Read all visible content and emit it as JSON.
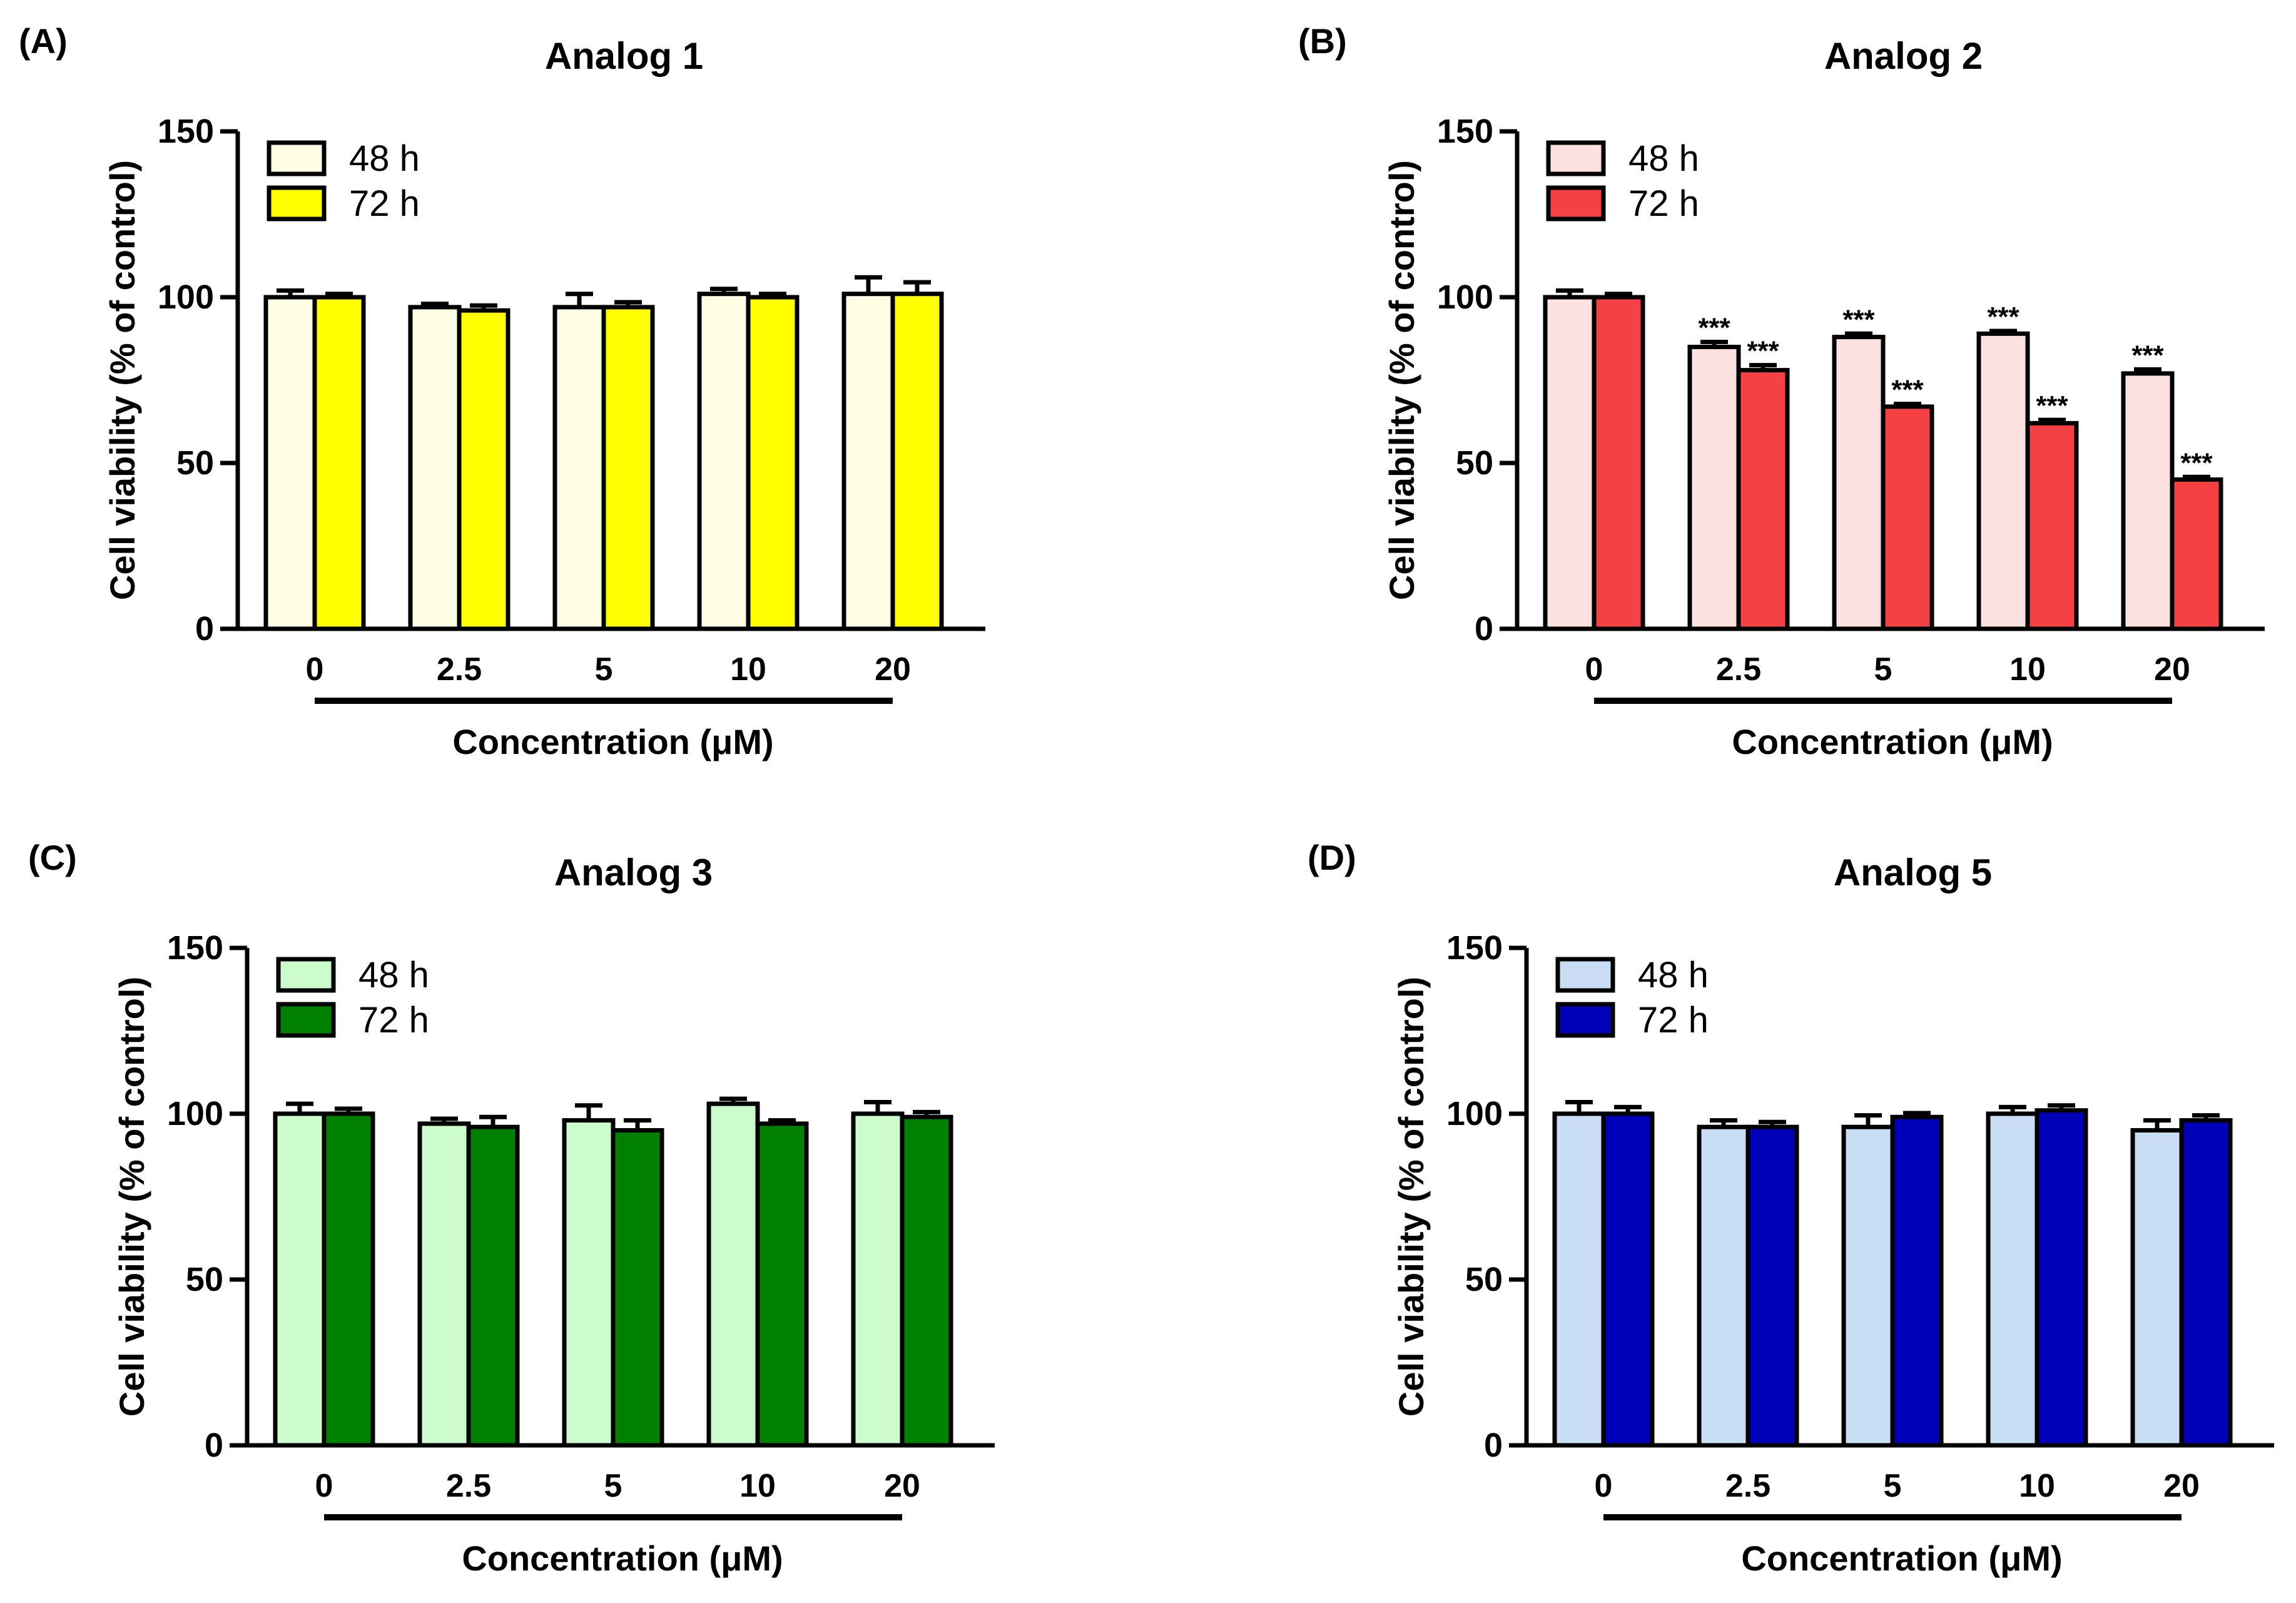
{
  "figure": {
    "x_axis_label": "Concentration (μM)",
    "y_axis_label": "Cell viability (% of control)"
  },
  "chart_data": [
    {
      "type": "bar",
      "panel": "(A)",
      "title": "Analog 1",
      "xlabel": "Concentration (μM)",
      "ylabel": "Cell viability (% of control)",
      "ylim": [
        0,
        150
      ],
      "yticks": [
        "0",
        "50",
        "100",
        "150"
      ],
      "categories": [
        "0",
        "2.5",
        "5",
        "10",
        "20"
      ],
      "legend_position": "top-left",
      "series": [
        {
          "name": "48 h",
          "color": "#FFFDE3",
          "values": [
            100,
            97,
            97,
            101,
            101
          ],
          "errors": [
            2,
            1,
            4,
            1.5,
            5
          ],
          "annotations": [
            "",
            "",
            "",
            "",
            ""
          ]
        },
        {
          "name": "72 h",
          "color": "#FFFF00",
          "values": [
            100,
            96,
            97,
            100,
            101
          ],
          "errors": [
            1,
            1.5,
            1.5,
            1,
            3.5
          ],
          "annotations": [
            "",
            "",
            "",
            "",
            ""
          ]
        }
      ]
    },
    {
      "type": "bar",
      "panel": "(B)",
      "title": "Analog 2",
      "xlabel": "Concentration (μM)",
      "ylabel": "Cell viability (% of control)",
      "ylim": [
        0,
        150
      ],
      "yticks": [
        "0",
        "50",
        "100",
        "150"
      ],
      "categories": [
        "0",
        "2.5",
        "5",
        "10",
        "20"
      ],
      "legend_position": "top-left",
      "series": [
        {
          "name": "48 h",
          "color": "#FDE0E0",
          "values": [
            100,
            85,
            88,
            89,
            77
          ],
          "errors": [
            2,
            1.5,
            1,
            0.8,
            1.2
          ],
          "annotations": [
            "",
            "***",
            "***",
            "***",
            "***"
          ]
        },
        {
          "name": "72 h",
          "color": "#F64144",
          "values": [
            100,
            78,
            67,
            62,
            45
          ],
          "errors": [
            1,
            1.5,
            0.8,
            1,
            0.8
          ],
          "annotations": [
            "",
            "***",
            "***",
            "***",
            "***"
          ]
        }
      ]
    },
    {
      "type": "bar",
      "panel": "(C)",
      "title": "Analog 3",
      "xlabel": "Concentration (μM)",
      "ylabel": "Cell viability (% of control)",
      "ylim": [
        0,
        150
      ],
      "yticks": [
        "0",
        "50",
        "100",
        "150"
      ],
      "categories": [
        "0",
        "2.5",
        "5",
        "10",
        "20"
      ],
      "legend_position": "top-left",
      "series": [
        {
          "name": "48 h",
          "color": "#CCFBCC",
          "values": [
            100,
            97,
            98,
            103,
            100
          ],
          "errors": [
            3,
            1.5,
            4.5,
            1.5,
            3.5
          ],
          "annotations": [
            "",
            "",
            "",
            "",
            ""
          ]
        },
        {
          "name": "72 h",
          "color": "#008000",
          "values": [
            100,
            96,
            95,
            97,
            99
          ],
          "errors": [
            1.5,
            3,
            3,
            1,
            1.5
          ],
          "annotations": [
            "",
            "",
            "",
            "",
            ""
          ]
        }
      ]
    },
    {
      "type": "bar",
      "panel": "(D)",
      "title": "Analog 5",
      "xlabel": "Concentration (μM)",
      "ylabel": "Cell viability (% of control)",
      "ylim": [
        0,
        150
      ],
      "yticks": [
        "0",
        "50",
        "100",
        "150"
      ],
      "categories": [
        "0",
        "2.5",
        "5",
        "10",
        "20"
      ],
      "legend_position": "top-left",
      "series": [
        {
          "name": "48 h",
          "color": "#C9DDF5",
          "values": [
            100,
            96,
            96,
            100,
            95
          ],
          "errors": [
            3.5,
            2,
            3.5,
            2,
            3
          ],
          "annotations": [
            "",
            "",
            "",
            "",
            ""
          ]
        },
        {
          "name": "72 h",
          "color": "#0000B8",
          "values": [
            100,
            96,
            99,
            101,
            98
          ],
          "errors": [
            2,
            1.5,
            1.2,
            1.5,
            1.5
          ],
          "annotations": [
            "",
            "",
            "",
            "",
            ""
          ]
        }
      ]
    }
  ]
}
